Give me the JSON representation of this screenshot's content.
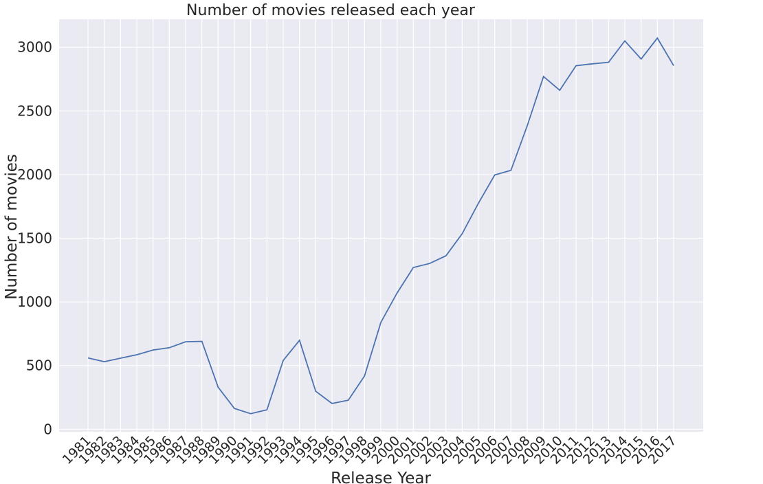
{
  "chart_data": {
    "type": "line",
    "title": "Number of movies released each year",
    "xlabel": "Release Year",
    "ylabel": "Number of movies",
    "ylim": [
      -20,
      3220
    ],
    "grid": true,
    "legend": "none",
    "line_color": "#4c72b0",
    "background_color": "#eaeaf2",
    "grid_color": "#ffffff",
    "yticks": [
      0,
      500,
      1000,
      1500,
      2000,
      2500,
      3000
    ],
    "categories": [
      "1981",
      "1982",
      "1983",
      "1984",
      "1985",
      "1986",
      "1987",
      "1988",
      "1989",
      "1990",
      "1991",
      "1992",
      "1993",
      "1994",
      "1995",
      "1996",
      "1997",
      "1998",
      "1999",
      "2000",
      "2001",
      "2002",
      "2003",
      "2004",
      "2005",
      "2006",
      "2007",
      "2008",
      "2009",
      "2010",
      "2011",
      "2012",
      "2013",
      "2014",
      "2015",
      "2016",
      "2017"
    ],
    "values": [
      560,
      530,
      558,
      585,
      622,
      640,
      687,
      690,
      330,
      163,
      122,
      152,
      540,
      698,
      298,
      202,
      228,
      418,
      838,
      1070,
      1270,
      1302,
      1362,
      1535,
      1775,
      1997,
      2033,
      2383,
      2770,
      2662,
      2855,
      2870,
      2882,
      3050,
      2908,
      3072,
      2856
    ]
  }
}
